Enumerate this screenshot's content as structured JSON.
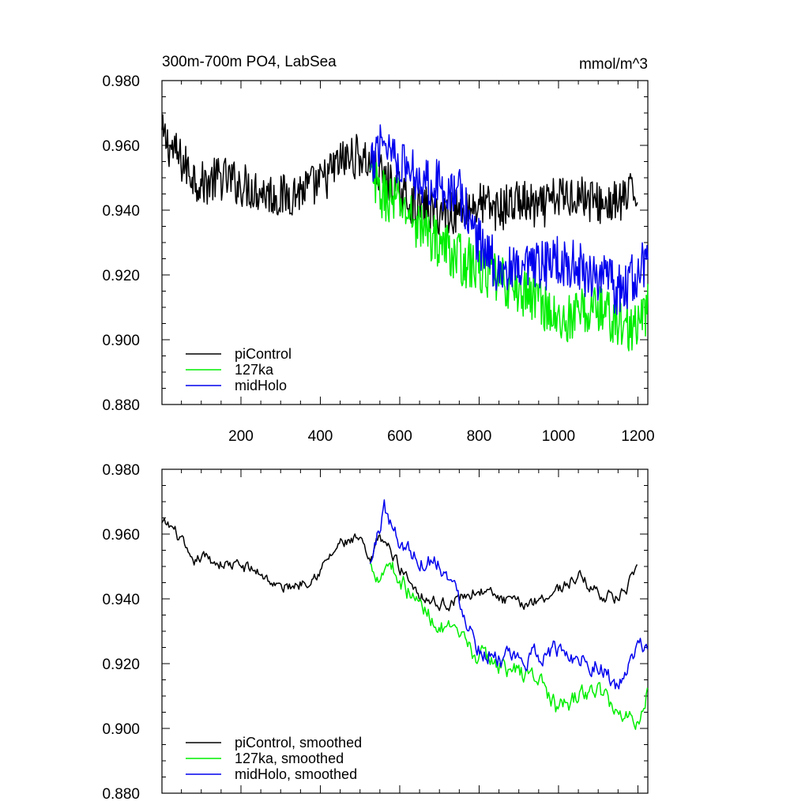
{
  "chart_data": [
    {
      "type": "line",
      "title": "300m-700m PO4, LabSea",
      "units": "mmol/m^3",
      "xlabel": "",
      "ylabel": "",
      "xlim": [
        1,
        1225
      ],
      "ylim": [
        0.88,
        0.98
      ],
      "x_ticks": [
        200,
        400,
        600,
        800,
        1000,
        1200
      ],
      "x_tick_labels": [
        "200",
        "400",
        "600",
        "800",
        "1000",
        "1200"
      ],
      "y_ticks": [
        0.88,
        0.9,
        0.92,
        0.94,
        0.96,
        0.98
      ],
      "y_tick_labels": [
        "0.880",
        "0.900",
        "0.920",
        "0.940",
        "0.960",
        "0.980"
      ],
      "grid": false,
      "legend_position": "bottom-left",
      "series": [
        {
          "name": "piControl",
          "color": "#000000",
          "x": [
            1,
            50,
            100,
            150,
            200,
            250,
            300,
            350,
            400,
            450,
            500,
            550,
            600,
            650,
            700,
            750,
            800,
            850,
            900,
            950,
            1000,
            1050,
            1100,
            1150,
            1200
          ],
          "y": [
            0.963,
            0.955,
            0.948,
            0.95,
            0.948,
            0.946,
            0.944,
            0.946,
            0.948,
            0.955,
            0.957,
            0.951,
            0.945,
            0.941,
            0.939,
            0.94,
            0.942,
            0.94,
            0.943,
            0.94,
            0.944,
            0.945,
            0.942,
            0.942,
            0.946
          ],
          "noise": 0.007
        },
        {
          "name": "127ka",
          "color": "#00ee00",
          "x": [
            525,
            550,
            600,
            650,
            700,
            750,
            800,
            850,
            900,
            950,
            1000,
            1050,
            1100,
            1150,
            1200,
            1225
          ],
          "y": [
            0.95,
            0.945,
            0.942,
            0.935,
            0.93,
            0.925,
            0.922,
            0.918,
            0.915,
            0.913,
            0.905,
            0.908,
            0.91,
            0.905,
            0.903,
            0.91
          ],
          "noise": 0.008
        },
        {
          "name": "midHolo",
          "color": "#0000ee",
          "x": [
            525,
            550,
            575,
            600,
            650,
            700,
            750,
            800,
            850,
            900,
            950,
            1000,
            1050,
            1100,
            1150,
            1200,
            1225
          ],
          "y": [
            0.95,
            0.963,
            0.96,
            0.955,
            0.95,
            0.948,
            0.945,
            0.93,
            0.922,
            0.92,
            0.922,
            0.925,
            0.922,
            0.92,
            0.915,
            0.92,
            0.925
          ],
          "noise": 0.008
        }
      ]
    },
    {
      "type": "line",
      "title": "",
      "xlabel": "",
      "ylabel": "",
      "xlim": [
        1,
        1225
      ],
      "ylim": [
        0.88,
        0.98
      ],
      "x_ticks": [
        200,
        400,
        600,
        800,
        1000,
        1200
      ],
      "y_ticks": [
        0.88,
        0.9,
        0.92,
        0.94,
        0.96,
        0.98
      ],
      "y_tick_labels": [
        "0.880",
        "0.900",
        "0.920",
        "0.940",
        "0.960",
        "0.980"
      ],
      "grid": false,
      "legend_position": "bottom-left",
      "series": [
        {
          "name": "piControl, smoothed",
          "color": "#000000",
          "x": [
            1,
            25,
            50,
            75,
            100,
            150,
            200,
            250,
            300,
            350,
            400,
            450,
            500,
            525,
            550,
            575,
            600,
            650,
            700,
            750,
            800,
            850,
            900,
            950,
            1000,
            1050,
            1100,
            1150,
            1200
          ],
          "y": [
            0.963,
            0.962,
            0.958,
            0.95,
            0.953,
            0.951,
            0.95,
            0.948,
            0.943,
            0.945,
            0.949,
            0.957,
            0.958,
            0.95,
            0.96,
            0.955,
            0.95,
            0.942,
            0.938,
            0.94,
            0.943,
            0.94,
            0.938,
            0.94,
            0.943,
            0.947,
            0.942,
            0.94,
            0.948
          ],
          "noise": 0.002
        },
        {
          "name": "127ka, smoothed",
          "color": "#00ee00",
          "x": [
            525,
            550,
            575,
            600,
            650,
            700,
            750,
            800,
            850,
            900,
            950,
            1000,
            1050,
            1100,
            1150,
            1200,
            1225
          ],
          "y": [
            0.95,
            0.948,
            0.952,
            0.946,
            0.938,
            0.932,
            0.927,
            0.922,
            0.92,
            0.917,
            0.916,
            0.905,
            0.91,
            0.912,
            0.905,
            0.903,
            0.912
          ],
          "noise": 0.003
        },
        {
          "name": "midHolo, smoothed",
          "color": "#0000ee",
          "x": [
            525,
            550,
            560,
            575,
            600,
            650,
            700,
            750,
            800,
            850,
            900,
            950,
            1000,
            1050,
            1100,
            1150,
            1200,
            1225
          ],
          "y": [
            0.95,
            0.962,
            0.97,
            0.963,
            0.958,
            0.952,
            0.952,
            0.94,
            0.925,
            0.922,
            0.92,
            0.923,
            0.924,
            0.922,
            0.92,
            0.912,
            0.924,
            0.926
          ],
          "noise": 0.003
        }
      ]
    }
  ]
}
